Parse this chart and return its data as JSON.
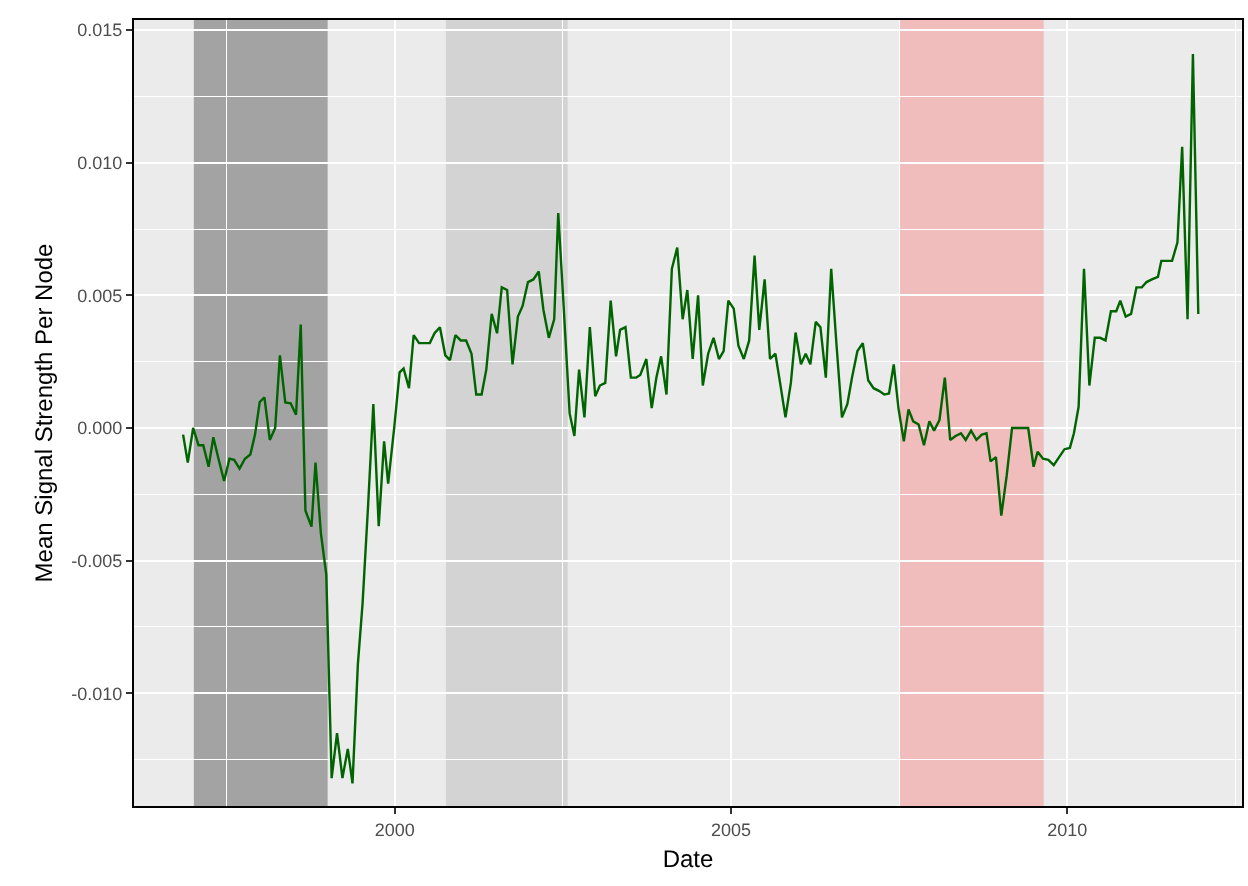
{
  "chart_data": {
    "type": "line",
    "xlabel": "Date",
    "ylabel": "Mean Signal Strength Per Node",
    "xlim": [
      1996.12,
      2012.6
    ],
    "xticks": [
      2000,
      2005,
      2010
    ],
    "ylim": [
      -0.01425,
      0.01538
    ],
    "yticks": [
      {
        "value": -0.01,
        "label": "-0.010"
      },
      {
        "value": -0.005,
        "label": "-0.005"
      },
      {
        "value": 0,
        "label": "0.000"
      },
      {
        "value": 0.005,
        "label": "0.005"
      },
      {
        "value": 0.01,
        "label": "0.010"
      },
      {
        "value": 0.015,
        "label": "0.015"
      }
    ],
    "grid": true,
    "marker": "none",
    "line_style": "solid",
    "bands": [
      {
        "axis": "x",
        "from": 1997.01,
        "to": 1999.0,
        "color": "#a3a3a3"
      },
      {
        "axis": "x",
        "from": 2000.76,
        "to": 2002.57,
        "color": "#d3d3d3"
      },
      {
        "axis": "x",
        "from": 2007.51,
        "to": 2009.65,
        "color": "#f0bcbc"
      }
    ],
    "series": [
      {
        "color": "#006400",
        "x": [
          1996.85,
          1996.92,
          1997.0,
          1997.08,
          1997.15,
          1997.23,
          1997.3,
          1997.38,
          1997.46,
          1997.54,
          1997.61,
          1997.69,
          1997.77,
          1997.85,
          1997.92,
          1997.99,
          1998.06,
          1998.14,
          1998.22,
          1998.29,
          1998.37,
          1998.45,
          1998.53,
          1998.6,
          1998.67,
          1998.76,
          1998.82,
          1998.9,
          1998.98,
          1999.06,
          1999.14,
          1999.22,
          1999.3,
          1999.37,
          1999.45,
          1999.52,
          1999.6,
          1999.68,
          1999.76,
          1999.84,
          1999.9,
          1999.99,
          2000.07,
          2000.13,
          2000.21,
          2000.28,
          2000.36,
          2000.44,
          2000.52,
          2000.59,
          2000.67,
          2000.75,
          2000.82,
          2000.9,
          2000.98,
          2001.06,
          2001.14,
          2001.21,
          2001.29,
          2001.36,
          2001.44,
          2001.52,
          2001.59,
          2001.67,
          2001.75,
          2001.83,
          2001.9,
          2001.98,
          2002.06,
          2002.14,
          2002.21,
          2002.29,
          2002.37,
          2002.43,
          2002.51,
          2002.6,
          2002.67,
          2002.74,
          2002.82,
          2002.9,
          2002.98,
          2003.05,
          2003.13,
          2003.21,
          2003.29,
          2003.35,
          2003.43,
          2003.51,
          2003.59,
          2003.65,
          2003.74,
          2003.82,
          2003.89,
          2003.96,
          2004.04,
          2004.12,
          2004.2,
          2004.28,
          2004.35,
          2004.43,
          2004.51,
          2004.58,
          2004.66,
          2004.74,
          2004.82,
          2004.89,
          2004.96,
          2005.04,
          2005.11,
          2005.19,
          2005.27,
          2005.35,
          2005.42,
          2005.5,
          2005.58,
          2005.66,
          2005.73,
          2005.81,
          2005.89,
          2005.96,
          2006.04,
          2006.11,
          2006.18,
          2006.26,
          2006.33,
          2006.41,
          2006.49,
          2006.57,
          2006.65,
          2006.73,
          2006.8,
          2006.88,
          2006.96,
          2007.04,
          2007.12,
          2007.2,
          2007.28,
          2007.35,
          2007.42,
          2007.49,
          2007.57,
          2007.64,
          2007.71,
          2007.79,
          2007.87,
          2007.95,
          2008.02,
          2008.1,
          2008.18,
          2008.26,
          2008.34,
          2008.42,
          2008.49,
          2008.57,
          2008.65,
          2008.73,
          2008.8,
          2008.86,
          2008.94,
          2009.02,
          2009.1,
          2009.18,
          2009.26,
          2009.34,
          2009.42,
          2009.5,
          2009.56,
          2009.64,
          2009.72,
          2009.8,
          2009.88,
          2009.96,
          2010.04,
          2010.1,
          2010.17,
          2010.25,
          2010.33,
          2010.41,
          2010.49,
          2010.57,
          2010.65,
          2010.73,
          2010.79,
          2010.87,
          2010.95,
          2011.03,
          2011.11,
          2011.18,
          2011.26,
          2011.35,
          2011.4,
          2011.48,
          2011.56,
          2011.64,
          2011.71,
          2011.79,
          2011.87,
          2011.95
        ],
        "values": [
          -0.00025,
          -0.0013,
          0,
          -0.00065,
          -0.00065,
          -0.00146,
          -0.00035,
          -0.0012,
          -0.002,
          -0.00116,
          -0.0012,
          -0.00153,
          -0.00116,
          -0.001,
          -0.00025,
          0.00098,
          0.00115,
          -0.00045,
          0,
          0.00274,
          0.00096,
          0.00093,
          0.0005,
          0.0039,
          -0.00312,
          -0.00372,
          -0.0013,
          -0.00397,
          -0.00553,
          -0.0132,
          -0.0115,
          -0.0132,
          -0.0121,
          -0.0134,
          -0.0089,
          -0.0066,
          -0.003,
          0.0009,
          -0.0037,
          -0.0005,
          -0.0021,
          0,
          0.0021,
          0.00224,
          0.0015,
          0.0035,
          0.0032,
          0.0032,
          0.0032,
          0.00357,
          0.0038,
          0.00274,
          0.00256,
          0.0035,
          0.0033,
          0.0033,
          0.0028,
          0.00126,
          0.00126,
          0.0022,
          0.0043,
          0.00357,
          0.0053,
          0.0052,
          0.0024,
          0.0042,
          0.0046,
          0.0055,
          0.0056,
          0.0059,
          0.00445,
          0.0034,
          0.0041,
          0.0081,
          0.0046,
          0.00055,
          -0.0003,
          0.0022,
          0.0004,
          0.0038,
          0.0012,
          0.0016,
          0.0017,
          0.0048,
          0.0027,
          0.0037,
          0.0038,
          0.0019,
          0.0019,
          0.002,
          0.0026,
          0.00075,
          0.0019,
          0.0027,
          0.00126,
          0.006,
          0.0068,
          0.0041,
          0.0052,
          0.0026,
          0.005,
          0.0016,
          0.0028,
          0.0034,
          0.0026,
          0.0029,
          0.0048,
          0.0045,
          0.0031,
          0.0026,
          0.0033,
          0.0065,
          0.0037,
          0.0056,
          0.0026,
          0.0028,
          0.0017,
          0.0004,
          0.0017,
          0.0036,
          0.0024,
          0.0028,
          0.0024,
          0.004,
          0.0038,
          0.0019,
          0.006,
          0.0031,
          0.0004,
          0.0009,
          0.0019,
          0.0029,
          0.0032,
          0.0018,
          0.0015,
          0.0014,
          0.00126,
          0.0013,
          0.0024,
          0.00075,
          -0.0005,
          0.0007,
          0.00025,
          0.00013,
          -0.00065,
          0.00025,
          -0.0001,
          0.0003,
          0.0019,
          -0.00045,
          -0.0003,
          -0.0002,
          -0.00045,
          -0.0001,
          -0.00045,
          -0.00025,
          -0.0002,
          -0.00126,
          -0.0011,
          -0.0033,
          -0.0018,
          0,
          0,
          0,
          0,
          -0.00146,
          -0.0009,
          -0.00116,
          -0.0012,
          -0.0014,
          -0.0011,
          -0.0008,
          -0.00075,
          -0.0002,
          0.0008,
          0.006,
          0.0016,
          0.0034,
          0.0034,
          0.0033,
          0.0044,
          0.0044,
          0.0048,
          0.0042,
          0.0043,
          0.0053,
          0.0053,
          0.0055,
          0.0056,
          0.0057,
          0.0063,
          0.0063,
          0.0063,
          0.007,
          0.0106,
          0.0041,
          0.0141,
          0.0043
        ]
      }
    ]
  }
}
